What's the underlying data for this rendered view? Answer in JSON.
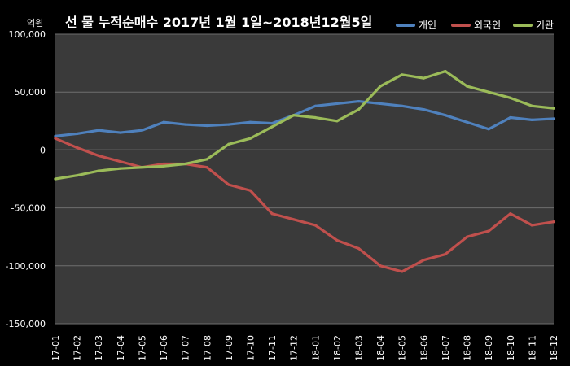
{
  "chart_data": {
    "type": "line",
    "title": "선 물 누적순매수 2017년 1월 1일~2018년12월5일",
    "unit_label": "억원",
    "ylim": [
      -150000,
      100000
    ],
    "yticks": [
      100000,
      50000,
      0,
      -50000,
      -100000,
      -150000
    ],
    "ytick_labels": [
      "100,000",
      "50,000",
      "0",
      "-50,000",
      "-100,000",
      "-150,000"
    ],
    "x_labels": [
      "17-01",
      "17-02",
      "17-03",
      "17-04",
      "17-05",
      "17-06",
      "17-07",
      "17-08",
      "17-09",
      "17-10",
      "17-11",
      "17-12",
      "18-01",
      "18-02",
      "18-03",
      "18-04",
      "18-05",
      "18-06",
      "18-07",
      "18-08",
      "18-09",
      "18-10",
      "18-11",
      "18-12"
    ],
    "grid": true,
    "legend_position": "top-right",
    "series": [
      {
        "name": "개인",
        "color": "#4f81bd",
        "values": [
          12000,
          14000,
          17000,
          15000,
          17000,
          24000,
          22000,
          21000,
          22000,
          24000,
          23000,
          30000,
          38000,
          40000,
          42000,
          40000,
          38000,
          35000,
          30000,
          24000,
          18000,
          28000,
          26000,
          27000
        ]
      },
      {
        "name": "외국인",
        "color": "#c0504d",
        "values": [
          10000,
          2000,
          -5000,
          -10000,
          -15000,
          -12000,
          -12000,
          -15000,
          -30000,
          -35000,
          -55000,
          -60000,
          -65000,
          -78000,
          -85000,
          -100000,
          -105000,
          -95000,
          -90000,
          -75000,
          -70000,
          -55000,
          -65000,
          -62000
        ]
      },
      {
        "name": "기관",
        "color": "#9bbb59",
        "values": [
          -25000,
          -22000,
          -18000,
          -16000,
          -15000,
          -14000,
          -12000,
          -8000,
          5000,
          10000,
          20000,
          30000,
          28000,
          25000,
          35000,
          55000,
          65000,
          62000,
          68000,
          55000,
          50000,
          45000,
          38000,
          36000
        ]
      }
    ]
  }
}
